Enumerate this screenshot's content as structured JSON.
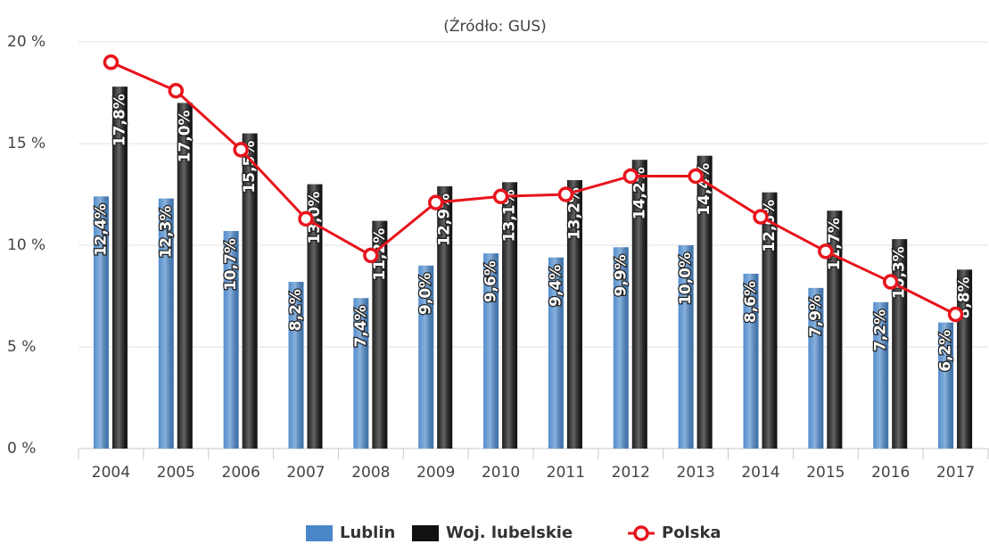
{
  "chart_data": {
    "type": "bar",
    "title": "(Źródło: GUS)",
    "categories": [
      "2004",
      "2005",
      "2006",
      "2007",
      "2008",
      "2009",
      "2010",
      "2011",
      "2012",
      "2013",
      "2014",
      "2015",
      "2016",
      "2017"
    ],
    "series": [
      {
        "name": "Lublin",
        "type": "bar",
        "color": "#4a87c9",
        "values": [
          12.4,
          12.3,
          10.7,
          8.2,
          7.4,
          9.0,
          9.6,
          9.4,
          9.9,
          10.0,
          8.6,
          7.9,
          7.2,
          6.2
        ],
        "value_labels": [
          "12,4%",
          "12,3%",
          "10,7%",
          "8,2%",
          "7,4%",
          "9,0%",
          "9,6%",
          "9,4%",
          "9,9%",
          "10,0%",
          "8,6%",
          "7,9%",
          "7,2%",
          "6,2%"
        ]
      },
      {
        "name": "Woj. lubelskie",
        "type": "bar",
        "color": "#111111",
        "values": [
          17.8,
          17.0,
          15.5,
          13.0,
          11.2,
          12.9,
          13.1,
          13.2,
          14.2,
          14.4,
          12.6,
          11.7,
          10.3,
          8.8
        ],
        "value_labels": [
          "17,8%",
          "17,0%",
          "15,5%",
          "13,0%",
          "11,2%",
          "12,9%",
          "13,1%",
          "13,2%",
          "14,2%",
          "14,4%",
          "12,6%",
          "11,7%",
          "10,3%",
          "8,8%"
        ]
      },
      {
        "name": "Polska",
        "type": "line",
        "color": "#e8141c",
        "values": [
          19.0,
          17.6,
          14.7,
          11.3,
          9.5,
          12.1,
          12.4,
          12.5,
          13.4,
          13.4,
          11.4,
          9.7,
          8.2,
          6.6
        ]
      }
    ],
    "ylim": [
      0,
      20
    ],
    "yticks": [
      {
        "value": 0,
        "label": "0 %"
      },
      {
        "value": 5,
        "label": "5 %"
      },
      {
        "value": 10,
        "label": "10 %"
      },
      {
        "value": 15,
        "label": "15 %"
      },
      {
        "value": 20,
        "label": "20 %"
      }
    ],
    "grid": true,
    "legend": "bottom"
  }
}
